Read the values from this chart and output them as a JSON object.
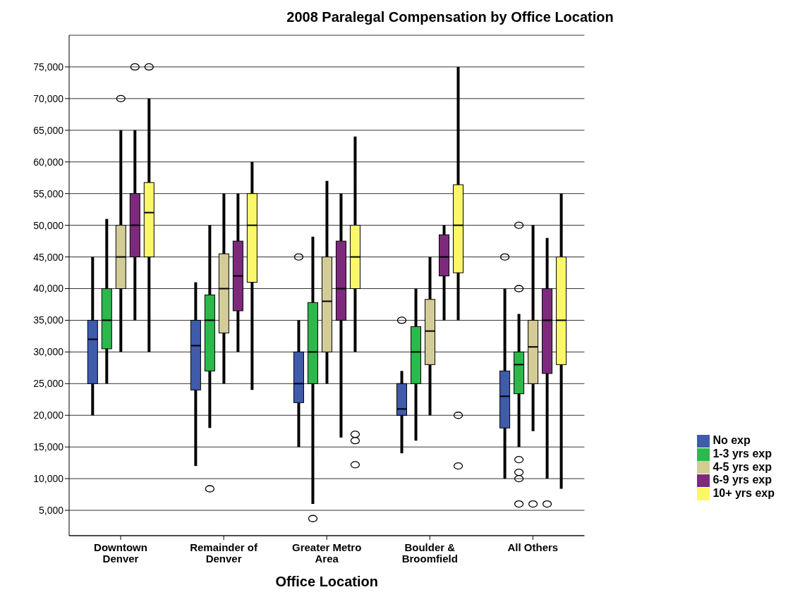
{
  "chart_data": {
    "type": "box",
    "title": "2008 Paralegal Compensation by Office Location",
    "xlabel": "Office Location",
    "categories": [
      "Downtown Denver",
      "Remainder of Denver",
      "Greater Metro Area",
      "Boulder & Broomfield",
      "All Others"
    ],
    "ylim": [
      1000,
      80000
    ],
    "yticks": [
      {
        "value": 5000,
        "label": "5,000"
      },
      {
        "value": 10000,
        "label": "10,000"
      },
      {
        "value": 15000,
        "label": "15,000"
      },
      {
        "value": 20000,
        "label": "20,000"
      },
      {
        "value": 25000,
        "label": "25,000"
      },
      {
        "value": 30000,
        "label": "30,000"
      },
      {
        "value": 35000,
        "label": "35,000"
      },
      {
        "value": 40000,
        "label": "40,000"
      },
      {
        "value": 45000,
        "label": "45,000"
      },
      {
        "value": 50000,
        "label": "50,000"
      },
      {
        "value": 55000,
        "label": "55,000"
      },
      {
        "value": 60000,
        "label": "60,000"
      },
      {
        "value": 65000,
        "label": "65,000"
      },
      {
        "value": 70000,
        "label": "70,000"
      },
      {
        "value": 75000,
        "label": "75,000"
      }
    ],
    "grid": "y",
    "legend": "right",
    "series": [
      {
        "name": "No exp",
        "color": "#3f5bab",
        "boxes": [
          {
            "low": 20000,
            "q1": 25000,
            "median": 32000,
            "q3": 35000,
            "high": 45000
          },
          {
            "low": 12000,
            "q1": 24000,
            "median": 31000,
            "q3": 35000,
            "high": 41000
          },
          {
            "low": 15000,
            "q1": 22000,
            "median": 25000,
            "q3": 30000,
            "high": 35000,
            "outliers": [
              45000
            ]
          },
          {
            "low": 14000,
            "q1": 20000,
            "median": 21000,
            "q3": 25000,
            "high": 27000,
            "outliers": [
              35000
            ]
          },
          {
            "low": 10000,
            "q1": 18000,
            "median": 23000,
            "q3": 27000,
            "high": 40000,
            "outliers": [
              45000
            ]
          }
        ]
      },
      {
        "name": "1-3 yrs exp",
        "color": "#2db84b",
        "boxes": [
          {
            "low": 25000,
            "q1": 30500,
            "median": 35000,
            "q3": 40000,
            "high": 51000
          },
          {
            "low": 18000,
            "q1": 27000,
            "median": 35000,
            "q3": 39000,
            "high": 50000,
            "outliers": [
              8400
            ]
          },
          {
            "low": 6000,
            "q1": 25000,
            "median": 30000,
            "q3": 37800,
            "high": 48200,
            "outliers": [
              3700
            ]
          },
          {
            "low": 16000,
            "q1": 25000,
            "median": 30000,
            "q3": 34000,
            "high": 40000
          },
          {
            "low": 15000,
            "q1": 23400,
            "median": 28000,
            "q3": 30000,
            "high": 36000,
            "outliers": [
              50000,
              40000,
              13000,
              11000,
              10000,
              6000
            ]
          }
        ]
      },
      {
        "name": "4-5 yrs exp",
        "color": "#d3cc97",
        "boxes": [
          {
            "low": 30000,
            "q1": 40000,
            "median": 45000,
            "q3": 50000,
            "high": 65000,
            "outliers": [
              70000
            ]
          },
          {
            "low": 25000,
            "q1": 33000,
            "median": 40000,
            "q3": 45500,
            "high": 55000
          },
          {
            "low": 25000,
            "q1": 30000,
            "median": 38000,
            "q3": 45000,
            "high": 57000
          },
          {
            "low": 20000,
            "q1": 28000,
            "median": 33300,
            "q3": 38300,
            "high": 45000
          },
          {
            "low": 17500,
            "q1": 25000,
            "median": 30800,
            "q3": 35000,
            "high": 50000,
            "outliers": [
              6000
            ]
          }
        ]
      },
      {
        "name": "6-9 yrs exp",
        "color": "#7d2a7d",
        "boxes": [
          {
            "low": 35000,
            "q1": 45000,
            "median": 50000,
            "q3": 55000,
            "high": 65000,
            "outliers": [
              75000
            ]
          },
          {
            "low": 30000,
            "q1": 36500,
            "median": 42000,
            "q3": 47500,
            "high": 55000
          },
          {
            "low": 16500,
            "q1": 35000,
            "median": 40000,
            "q3": 47500,
            "high": 55000
          },
          {
            "low": 35000,
            "q1": 42000,
            "median": 45000,
            "q3": 48500,
            "high": 50000
          },
          {
            "low": 10000,
            "q1": 26600,
            "median": 35000,
            "q3": 40000,
            "high": 48000,
            "outliers": [
              6000
            ]
          }
        ]
      },
      {
        "name": "10+ yrs exp",
        "color": "#fbf76b",
        "boxes": [
          {
            "low": 30000,
            "q1": 45000,
            "median": 52000,
            "q3": 56750,
            "high": 70000,
            "outliers": [
              75000
            ]
          },
          {
            "low": 24000,
            "q1": 41000,
            "median": 50000,
            "q3": 55000,
            "high": 60000
          },
          {
            "low": 30000,
            "q1": 40000,
            "median": 45000,
            "q3": 50000,
            "high": 64000,
            "outliers": [
              17000,
              16000,
              12200
            ]
          },
          {
            "low": 35000,
            "q1": 42500,
            "median": 50000,
            "q3": 56400,
            "high": 75000,
            "outliers": [
              20000,
              12000
            ]
          },
          {
            "low": 8400,
            "q1": 28000,
            "median": 35000,
            "q3": 45000,
            "high": 55000
          }
        ]
      }
    ]
  }
}
